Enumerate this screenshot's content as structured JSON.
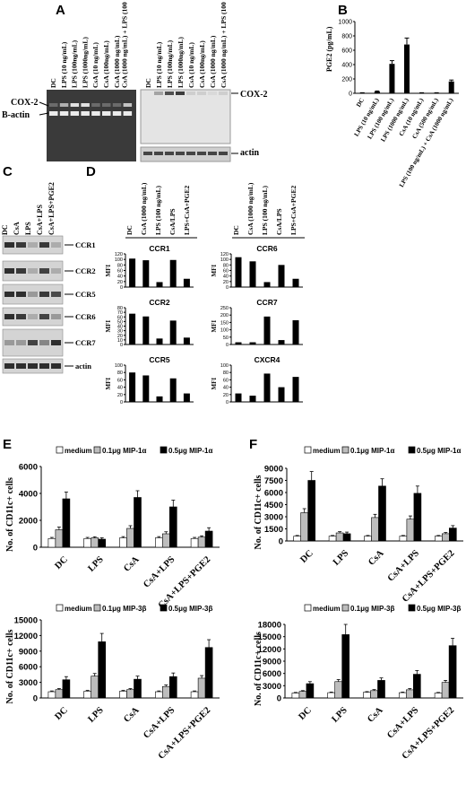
{
  "panel_labels": [
    "A",
    "B",
    "C",
    "D",
    "E",
    "F"
  ],
  "panelA": {
    "left_lanes": [
      "DC",
      "LPS (10 ng/mL)",
      "LPS (100ng/mL)",
      "LPS (1000ng/mL)",
      "CsA (10 ng/mL)",
      "CsA (100ng/mL)",
      "CsA (1000 ng/mL)",
      "CsA (1000 ng/mL) + LPS (100 ng/mL)"
    ],
    "right_lanes": [
      "DC",
      "LPS (10 ng/mL)",
      "LPS (100ng/mL)",
      "LPS (1000ng/mL)",
      "CsA (10 ng/mL)",
      "CsA (100ng/mL)",
      "CsA (1000 ng/mL)",
      "CsA (1000 ng/mL) + LPS (100 ng/mL)"
    ],
    "left_bands": [
      "COX-2",
      "B-actin"
    ],
    "right_bands": [
      "COX-2",
      "actin"
    ]
  },
  "panelC": {
    "lanes": [
      "DC",
      "CsA",
      "LPS",
      "CsA+LPS",
      "CsA+LPS+PGE2"
    ],
    "bands": [
      "CCR1",
      "CCR2",
      "CCR5",
      "CCR6",
      "CCR7",
      "actin"
    ]
  },
  "panelD_header": [
    "DC",
    "CsA (1000 ng/mL)",
    "LPS (100 ng/mL)",
    "CsA/LPS",
    "LPS+CsA+PGE2"
  ],
  "chart_data": [
    {
      "id": "B",
      "type": "bar",
      "title": "",
      "ylabel": "PGE2 (pg/mL)",
      "xlabel": "",
      "ylim": [
        0,
        1000
      ],
      "yticks": [
        0,
        200,
        400,
        600,
        800,
        1000
      ],
      "categories": [
        "DC",
        "LPS (10 ng/mL)",
        "LPS (100 ng/mL)",
        "LPS (1000 ng/mL)",
        "CsA (10 ng/mL)",
        "CsA (500 ng/mL)",
        "LPS (100 ng/mL) + CsA (1000 ng/mL)"
      ],
      "values": [
        5,
        25,
        410,
        680,
        5,
        5,
        165
      ],
      "errors": [
        3,
        8,
        45,
        90,
        3,
        3,
        20
      ],
      "color": "#000000"
    },
    {
      "id": "D-CCR1",
      "type": "bar",
      "title": "CCR1",
      "ylabel": "MFI",
      "ylim": [
        0,
        120
      ],
      "yticks": [
        0,
        20,
        40,
        60,
        80,
        100,
        120
      ],
      "categories": [
        "DC",
        "CsA (1000 ng/mL)",
        "LPS (100 ng/mL)",
        "CsA/LPS",
        "LPS+CsA+PGE2"
      ],
      "values": [
        103,
        97,
        18,
        98,
        30
      ],
      "color": "#000000"
    },
    {
      "id": "D-CCR6",
      "type": "bar",
      "title": "CCR6",
      "ylabel": "MFI",
      "ylim": [
        0,
        120
      ],
      "yticks": [
        0,
        20,
        40,
        60,
        80,
        100,
        120
      ],
      "categories": [
        "DC",
        "CsA (1000 ng/mL)",
        "LPS (100 ng/mL)",
        "CsA/LPS",
        "LPS+CsA+PGE2"
      ],
      "values": [
        108,
        93,
        18,
        80,
        30
      ],
      "color": "#000000"
    },
    {
      "id": "D-CCR2",
      "type": "bar",
      "title": "CCR2",
      "ylabel": "MFI",
      "ylim": [
        0,
        80
      ],
      "yticks": [
        0,
        10,
        20,
        30,
        40,
        50,
        60,
        70,
        80
      ],
      "categories": [
        "DC",
        "CsA (1000 ng/mL)",
        "LPS (100 ng/mL)",
        "CsA/LPS",
        "LPS+CsA+PGE2"
      ],
      "values": [
        67,
        61,
        13,
        52,
        15
      ],
      "color": "#000000"
    },
    {
      "id": "D-CCR7",
      "type": "bar",
      "title": "CCR7",
      "ylabel": "MFI",
      "ylim": [
        0,
        250
      ],
      "yticks": [
        0,
        50,
        100,
        150,
        200,
        250
      ],
      "categories": [
        "DC",
        "CsA (1000 ng/mL)",
        "LPS (100 ng/mL)",
        "CsA/LPS",
        "LPS+CsA+PGE2"
      ],
      "values": [
        15,
        15,
        190,
        30,
        165
      ],
      "color": "#000000"
    },
    {
      "id": "D-CCR5",
      "type": "bar",
      "title": "CCR5",
      "ylabel": "MFI",
      "ylim": [
        0,
        100
      ],
      "yticks": [
        0,
        20,
        40,
        60,
        80,
        100
      ],
      "categories": [
        "DC",
        "CsA (1000 ng/mL)",
        "LPS (100 ng/mL)",
        "CsA/LPS",
        "LPS+CsA+PGE2"
      ],
      "values": [
        80,
        72,
        15,
        64,
        23
      ],
      "color": "#000000"
    },
    {
      "id": "D-CXCR4",
      "type": "bar",
      "title": "CXCR4",
      "ylabel": "MFI",
      "ylim": [
        0,
        100
      ],
      "yticks": [
        0,
        20,
        40,
        60,
        80,
        100
      ],
      "categories": [
        "DC",
        "CsA (1000 ng/mL)",
        "LPS (100 ng/mL)",
        "CsA/LPS",
        "LPS+CsA+PGE2"
      ],
      "values": [
        23,
        17,
        77,
        40,
        68
      ],
      "color": "#000000"
    },
    {
      "id": "E-top",
      "type": "bar",
      "title": "",
      "ylabel": "No. of CD11c+ cells",
      "ylim": [
        0,
        6000
      ],
      "yticks": [
        0,
        2000,
        4000,
        6000
      ],
      "categories": [
        "DC",
        "LPS",
        "CsA",
        "CsA+LPS",
        "CsA+LPS+PGE2"
      ],
      "series": [
        {
          "name": "medium",
          "values": [
            650,
            650,
            700,
            700,
            650
          ],
          "errors": [
            80,
            80,
            90,
            90,
            80
          ],
          "color": "#ffffff"
        },
        {
          "name": "0.1μg MIP-1α",
          "values": [
            1300,
            700,
            1400,
            1000,
            750
          ],
          "errors": [
            200,
            80,
            200,
            150,
            100
          ],
          "color": "#bdbdbd"
        },
        {
          "name": "0.5μg MIP-1α",
          "values": [
            3600,
            600,
            3700,
            3000,
            1200
          ],
          "errors": [
            500,
            100,
            500,
            500,
            250
          ],
          "color": "#000000"
        }
      ]
    },
    {
      "id": "F-top",
      "type": "bar",
      "title": "",
      "ylabel": "No. of CD11c+ cells",
      "ylim": [
        0,
        9000
      ],
      "yticks": [
        0,
        1500,
        3000,
        4500,
        6000,
        7500,
        9000
      ],
      "categories": [
        "DC",
        "LPS",
        "CsA",
        "CsA+LPS",
        "CsA+LPS+PGE2"
      ],
      "series": [
        {
          "name": "medium",
          "values": [
            600,
            600,
            600,
            600,
            600
          ],
          "errors": [
            80,
            80,
            80,
            80,
            80
          ],
          "color": "#ffffff"
        },
        {
          "name": "0.1μg MIP-1α",
          "values": [
            3500,
            1000,
            2900,
            2700,
            900
          ],
          "errors": [
            500,
            150,
            400,
            400,
            150
          ],
          "color": "#bdbdbd"
        },
        {
          "name": "0.5μg MIP-1α",
          "values": [
            7500,
            900,
            6800,
            5900,
            1600
          ],
          "errors": [
            1100,
            200,
            900,
            900,
            300
          ],
          "color": "#000000"
        }
      ]
    },
    {
      "id": "E-bottom",
      "type": "bar",
      "title": "",
      "ylabel": "No. of CD11c+ cells",
      "ylim": [
        0,
        15000
      ],
      "yticks": [
        0,
        3000,
        6000,
        9000,
        12000,
        15000
      ],
      "categories": [
        "DC",
        "LPS",
        "CsA",
        "CsA+LPS",
        "CsA+LPS+PGE2"
      ],
      "series": [
        {
          "name": "medium",
          "values": [
            1200,
            1300,
            1300,
            1200,
            1200
          ],
          "errors": [
            150,
            150,
            150,
            150,
            150
          ],
          "color": "#ffffff"
        },
        {
          "name": "0.1μg MIP-3β",
          "values": [
            1600,
            4200,
            1600,
            2200,
            3800
          ],
          "errors": [
            200,
            500,
            200,
            300,
            500
          ],
          "color": "#bdbdbd"
        },
        {
          "name": "0.5μg MIP-3β",
          "values": [
            3500,
            10800,
            3600,
            4100,
            9700
          ],
          "errors": [
            600,
            1600,
            600,
            700,
            1500
          ],
          "color": "#000000"
        }
      ]
    },
    {
      "id": "F-bottom",
      "type": "bar",
      "title": "",
      "ylabel": "No. of CD11c+ cells",
      "ylim": [
        0,
        18000
      ],
      "yticks": [
        0,
        3000,
        6000,
        9000,
        12000,
        15000,
        18000
      ],
      "categories": [
        "DC",
        "LPS",
        "CsA",
        "CsA+LPS",
        "CsA+LPS+PGE2"
      ],
      "series": [
        {
          "name": "medium",
          "values": [
            1200,
            1300,
            1400,
            1300,
            1200
          ],
          "errors": [
            150,
            150,
            150,
            150,
            150
          ],
          "color": "#ffffff"
        },
        {
          "name": "0.1μg MIP-3β",
          "values": [
            1600,
            4000,
            1800,
            2000,
            3800
          ],
          "errors": [
            200,
            500,
            250,
            300,
            500
          ],
          "color": "#bdbdbd"
        },
        {
          "name": "0.5μg MIP-3β",
          "values": [
            3500,
            15500,
            4300,
            5800,
            12800
          ],
          "errors": [
            500,
            2500,
            600,
            900,
            1800
          ],
          "color": "#000000"
        }
      ]
    }
  ]
}
